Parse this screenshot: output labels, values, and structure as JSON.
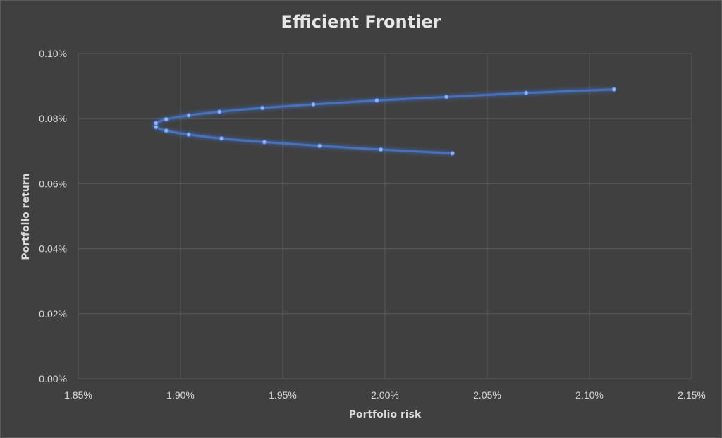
{
  "chart_data": {
    "type": "scatter",
    "title": "Efficient Frontier",
    "xlabel": "Portfolio risk",
    "ylabel": "Portfolio return",
    "xlim": [
      0.0185,
      0.0215
    ],
    "ylim": [
      0.0,
      0.001
    ],
    "x_ticks": [
      "1.85%",
      "1.90%",
      "1.95%",
      "2.00%",
      "2.05%",
      "2.10%",
      "2.15%"
    ],
    "y_ticks": [
      "0.00%",
      "0.02%",
      "0.04%",
      "0.06%",
      "0.08%",
      "0.10%"
    ],
    "x_tick_values": [
      0.0185,
      0.019,
      0.0195,
      0.02,
      0.0205,
      0.021,
      0.0215
    ],
    "y_tick_values": [
      0.0,
      0.0002,
      0.0004,
      0.0006,
      0.0008,
      0.001
    ],
    "grid": true,
    "legend": "none",
    "series": [
      {
        "color": "#4472c4",
        "x": [
          0.02033,
          0.01998,
          0.01968,
          0.01941,
          0.0192,
          0.01904,
          0.01893,
          0.01888,
          0.01888,
          0.01893,
          0.01904,
          0.01919,
          0.0194,
          0.01965,
          0.01996,
          0.0203,
          0.02069,
          0.02112
        ],
        "y": [
          0.000693,
          0.000705,
          0.000716,
          0.000728,
          0.000739,
          0.000751,
          0.000763,
          0.000774,
          0.000786,
          0.000798,
          0.00081,
          0.000821,
          0.000833,
          0.000844,
          0.000856,
          0.000867,
          0.000879,
          0.00089
        ]
      }
    ]
  }
}
